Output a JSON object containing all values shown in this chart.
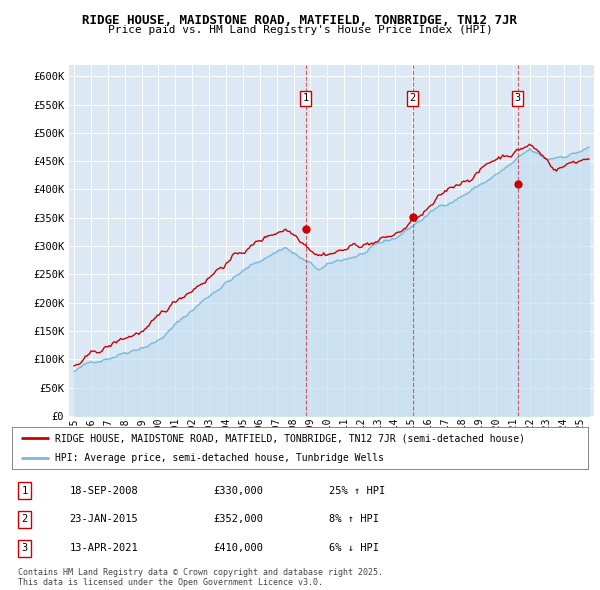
{
  "title1": "RIDGE HOUSE, MAIDSTONE ROAD, MATFIELD, TONBRIDGE, TN12 7JR",
  "title2": "Price paid vs. HM Land Registry's House Price Index (HPI)",
  "background_color": "#dce9f5",
  "hpi_color": "#7ab8d9",
  "hpi_fill_color": "#c5dff0",
  "price_color": "#cc0000",
  "ylim": [
    0,
    620000
  ],
  "yticks": [
    0,
    50000,
    100000,
    150000,
    200000,
    250000,
    300000,
    350000,
    400000,
    450000,
    500000,
    550000,
    600000
  ],
  "xlim_start": 1995.0,
  "xlim_end": 2025.5,
  "xticks": [
    1995,
    1996,
    1997,
    1998,
    1999,
    2000,
    2001,
    2002,
    2003,
    2004,
    2005,
    2006,
    2007,
    2008,
    2009,
    2010,
    2011,
    2012,
    2013,
    2014,
    2015,
    2016,
    2017,
    2018,
    2019,
    2020,
    2021,
    2022,
    2023,
    2024,
    2025
  ],
  "sale1": {
    "date": 2008.72,
    "price": 330000,
    "label": "1",
    "date_str": "18-SEP-2008",
    "price_str": "£330,000",
    "hpi_str": "25% ↑ HPI"
  },
  "sale2": {
    "date": 2015.06,
    "price": 352000,
    "label": "2",
    "date_str": "23-JAN-2015",
    "price_str": "£352,000",
    "hpi_str": "8% ↑ HPI"
  },
  "sale3": {
    "date": 2021.28,
    "price": 410000,
    "label": "3",
    "date_str": "13-APR-2021",
    "price_str": "£410,000",
    "hpi_str": "6% ↓ HPI"
  },
  "legend_line1": "RIDGE HOUSE, MAIDSTONE ROAD, MATFIELD, TONBRIDGE, TN12 7JR (semi-detached house)",
  "legend_line2": "HPI: Average price, semi-detached house, Tunbridge Wells",
  "footnote": "Contains HM Land Registry data © Crown copyright and database right 2025.\nThis data is licensed under the Open Government Licence v3.0."
}
